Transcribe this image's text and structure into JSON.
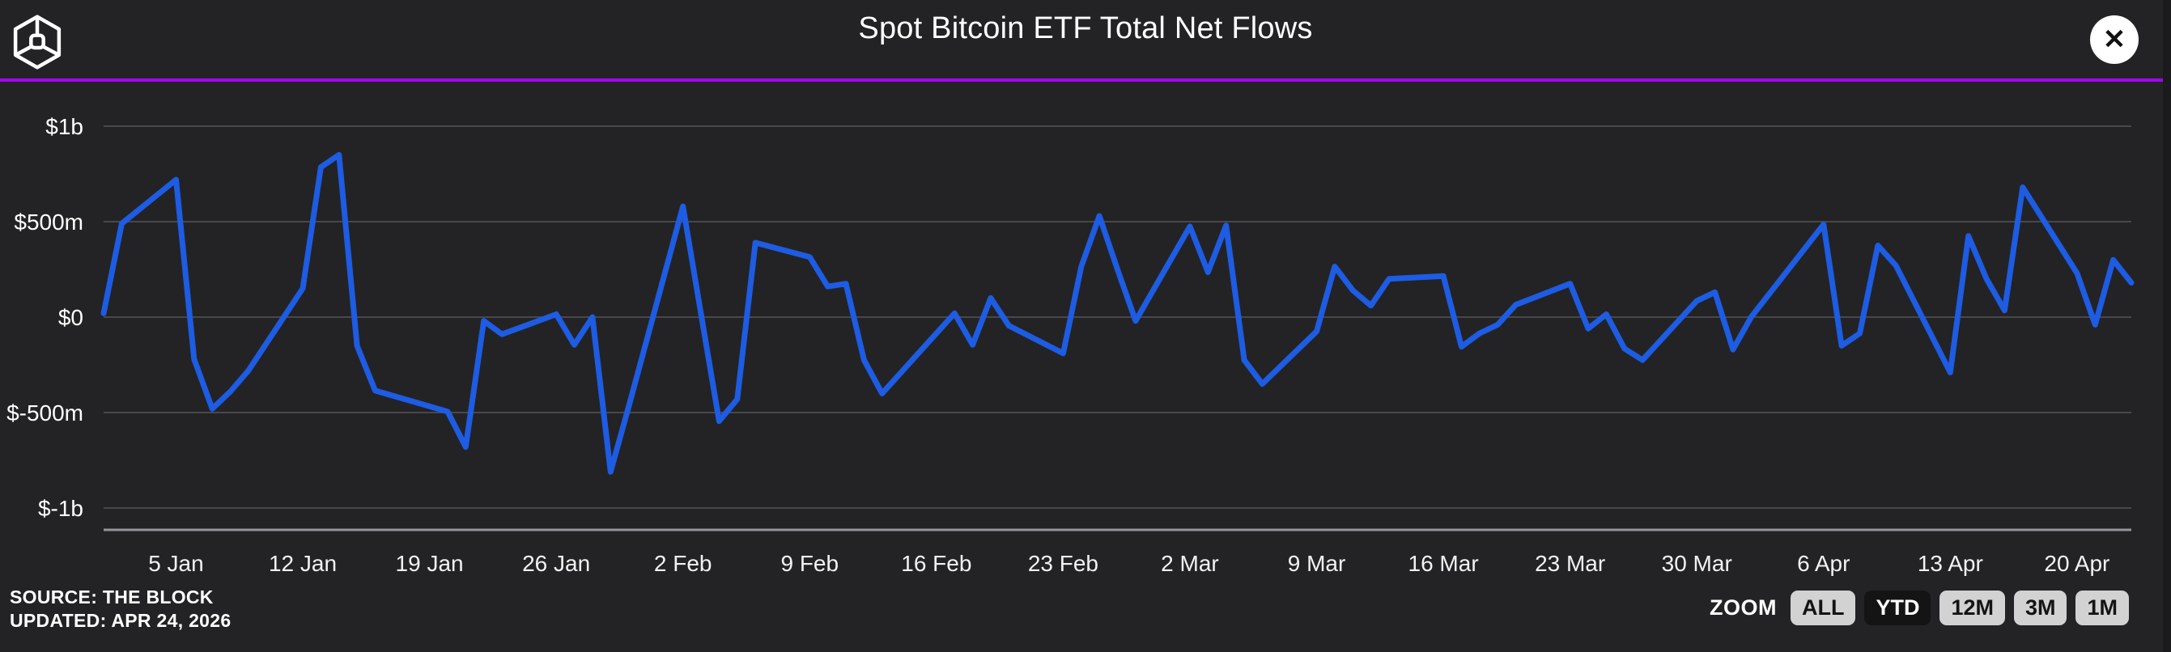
{
  "header": {
    "title": "Spot Bitcoin ETF Total Net Flows",
    "logo_icon": "the-block-cube-logo",
    "close_icon": "✕"
  },
  "footer": {
    "source_line1": "SOURCE: THE BLOCK",
    "source_line2": "UPDATED: APR 24, 2026",
    "zoom_label": "ZOOM",
    "zoom_buttons": [
      {
        "label": "ALL",
        "active": false
      },
      {
        "label": "YTD",
        "active": true
      },
      {
        "label": "12M",
        "active": false
      },
      {
        "label": "3M",
        "active": false
      },
      {
        "label": "1M",
        "active": false
      }
    ]
  },
  "colors": {
    "background": "#232325",
    "line_blue": "#1d5ce3",
    "purple_rule": "#A503F2",
    "gridline": "#48484c",
    "axis_line": "#96969a",
    "button_gray": "#d2d2d2",
    "button_active_bg": "#141414"
  },
  "chart_data": {
    "type": "line",
    "title": "Spot Bitcoin ETF Total Net Flows",
    "unit": "USD millions",
    "ylim_m": [
      -1000,
      1000
    ],
    "grid": true,
    "x_range_days": [
      0,
      112
    ],
    "y_ticks": [
      {
        "value_m": 1000,
        "label": "$1b"
      },
      {
        "value_m": 500,
        "label": "$500m"
      },
      {
        "value_m": 0,
        "label": "$0"
      },
      {
        "value_m": -500,
        "label": "$-500m"
      },
      {
        "value_m": -1000,
        "label": "$-1b"
      }
    ],
    "x_ticks": [
      {
        "day": 4,
        "label": "5 Jan"
      },
      {
        "day": 11,
        "label": "12 Jan"
      },
      {
        "day": 18,
        "label": "19 Jan"
      },
      {
        "day": 25,
        "label": "26 Jan"
      },
      {
        "day": 32,
        "label": "2 Feb"
      },
      {
        "day": 39,
        "label": "9 Feb"
      },
      {
        "day": 46,
        "label": "16 Feb"
      },
      {
        "day": 53,
        "label": "23 Feb"
      },
      {
        "day": 60,
        "label": "2 Mar"
      },
      {
        "day": 67,
        "label": "9 Mar"
      },
      {
        "day": 74,
        "label": "16 Mar"
      },
      {
        "day": 81,
        "label": "23 Mar"
      },
      {
        "day": 88,
        "label": "30 Mar"
      },
      {
        "day": 95,
        "label": "6 Apr"
      },
      {
        "day": 102,
        "label": "13 Apr"
      },
      {
        "day": 109,
        "label": "20 Apr"
      }
    ],
    "series": [
      {
        "name": "Total Net Flows",
        "points": [
          [
            "1 Jan",
            0,
            20
          ],
          [
            "2 Jan",
            1,
            490
          ],
          [
            "5 Jan",
            4,
            720
          ],
          [
            "6 Jan",
            5,
            -220
          ],
          [
            "7 Jan",
            6,
            -480
          ],
          [
            "8 Jan",
            7,
            -390
          ],
          [
            "9 Jan",
            8,
            -280
          ],
          [
            "12 Jan",
            11,
            150
          ],
          [
            "13 Jan",
            12,
            785
          ],
          [
            "14 Jan",
            13,
            850
          ],
          [
            "15 Jan",
            14,
            -150
          ],
          [
            "16 Jan",
            15,
            -385
          ],
          [
            "20 Jan",
            19,
            -495
          ],
          [
            "21 Jan",
            20,
            -680
          ],
          [
            "22 Jan",
            21,
            -20
          ],
          [
            "23 Jan",
            22,
            -90
          ],
          [
            "26 Jan",
            25,
            15
          ],
          [
            "27 Jan",
            26,
            -145
          ],
          [
            "28 Jan",
            27,
            0
          ],
          [
            "29 Jan",
            28,
            -810
          ],
          [
            "30 Jan",
            29,
            -470
          ],
          [
            "2 Feb",
            32,
            580
          ],
          [
            "3 Feb",
            33,
            15
          ],
          [
            "4 Feb",
            34,
            -545
          ],
          [
            "5 Feb",
            35,
            -430
          ],
          [
            "6 Feb",
            36,
            390
          ],
          [
            "9 Feb",
            39,
            315
          ],
          [
            "10 Feb",
            40,
            160
          ],
          [
            "11 Feb",
            41,
            175
          ],
          [
            "12 Feb",
            42,
            -225
          ],
          [
            "13 Feb",
            43,
            -400
          ],
          [
            "17 Feb",
            47,
            20
          ],
          [
            "18 Feb",
            48,
            -145
          ],
          [
            "19 Feb",
            49,
            100
          ],
          [
            "20 Feb",
            50,
            -45
          ],
          [
            "23 Feb",
            53,
            -190
          ],
          [
            "24 Feb",
            54,
            265
          ],
          [
            "25 Feb",
            55,
            530
          ],
          [
            "26 Feb",
            56,
            250
          ],
          [
            "27 Feb",
            57,
            -20
          ],
          [
            "2 Mar",
            60,
            475
          ],
          [
            "3 Mar",
            61,
            235
          ],
          [
            "4 Mar",
            62,
            480
          ],
          [
            "5 Mar",
            63,
            -225
          ],
          [
            "6 Mar",
            64,
            -350
          ],
          [
            "9 Mar",
            67,
            -75
          ],
          [
            "10 Mar",
            68,
            265
          ],
          [
            "11 Mar",
            69,
            140
          ],
          [
            "12 Mar",
            70,
            60
          ],
          [
            "13 Mar",
            71,
            200
          ],
          [
            "16 Mar",
            74,
            215
          ],
          [
            "17 Mar",
            75,
            -155
          ],
          [
            "18 Mar",
            76,
            -85
          ],
          [
            "19 Mar",
            77,
            -40
          ],
          [
            "20 Mar",
            78,
            65
          ],
          [
            "23 Mar",
            81,
            175
          ],
          [
            "24 Mar",
            82,
            -60
          ],
          [
            "25 Mar",
            83,
            15
          ],
          [
            "26 Mar",
            84,
            -165
          ],
          [
            "27 Mar",
            85,
            -225
          ],
          [
            "30 Mar",
            88,
            85
          ],
          [
            "31 Mar",
            89,
            130
          ],
          [
            "1 Apr",
            90,
            -170
          ],
          [
            "2 Apr",
            91,
            0
          ],
          [
            "6 Apr",
            95,
            485
          ],
          [
            "7 Apr",
            96,
            -150
          ],
          [
            "8 Apr",
            97,
            -85
          ],
          [
            "9 Apr",
            98,
            375
          ],
          [
            "10 Apr",
            99,
            270
          ],
          [
            "13 Apr",
            102,
            -290
          ],
          [
            "14 Apr",
            103,
            425
          ],
          [
            "15 Apr",
            104,
            200
          ],
          [
            "16 Apr",
            105,
            35
          ],
          [
            "17 Apr",
            106,
            680
          ],
          [
            "20 Apr",
            109,
            230
          ],
          [
            "21 Apr",
            110,
            -40
          ],
          [
            "22 Apr",
            111,
            300
          ],
          [
            "23 Apr",
            112,
            180
          ]
        ]
      }
    ],
    "legend": "none"
  }
}
